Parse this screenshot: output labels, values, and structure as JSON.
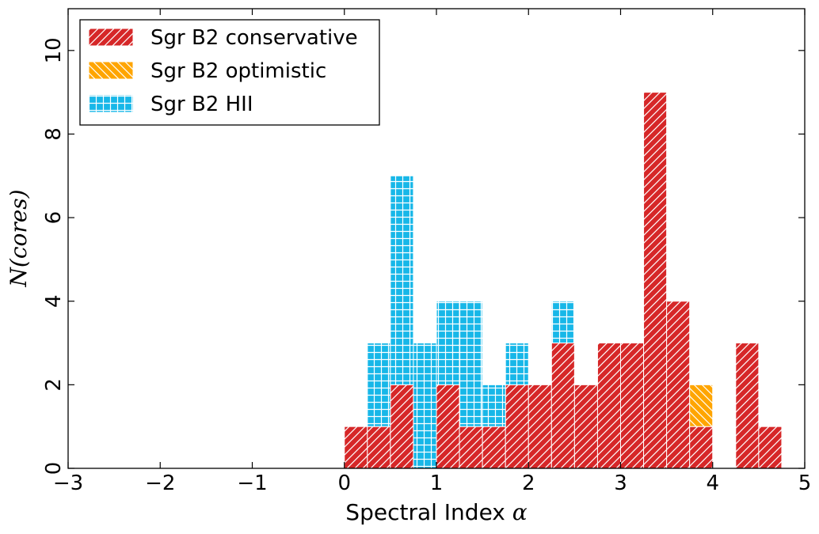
{
  "chart_data": {
    "type": "bar",
    "subtype": "stacked-histogram",
    "xlabel": "Spectral Index",
    "xlabel_symbol": "α",
    "ylabel": "N(cores)",
    "xlim": [
      -3,
      5
    ],
    "ylim": [
      0,
      11
    ],
    "xticks": [
      -3,
      -2,
      -1,
      0,
      1,
      2,
      3,
      4,
      5
    ],
    "xtick_labels": [
      "−3",
      "−2",
      "−1",
      "0",
      "1",
      "2",
      "3",
      "4",
      "5"
    ],
    "yticks": [
      0,
      2,
      4,
      6,
      8,
      10
    ],
    "ytick_labels": [
      "0",
      "2",
      "4",
      "6",
      "8",
      "10"
    ],
    "bin_width": 0.25,
    "bin_starts": [
      0.0,
      0.25,
      0.5,
      0.75,
      1.0,
      1.25,
      1.5,
      1.75,
      2.0,
      2.25,
      2.5,
      2.75,
      3.0,
      3.25,
      3.5,
      3.75,
      4.0,
      4.25,
      4.5
    ],
    "series": [
      {
        "name": "Sgr B2 conservative",
        "color": "#d62728",
        "hatch": "/",
        "values": [
          1,
          1,
          2,
          0,
          2,
          1,
          1,
          2,
          2,
          3,
          2,
          3,
          3,
          9,
          4,
          1,
          0,
          3,
          1
        ]
      },
      {
        "name": "Sgr B2 optimistic",
        "color": "#ffa500",
        "hatch": "\\",
        "values": [
          0,
          0,
          0,
          0,
          0,
          0,
          0,
          0,
          0,
          0,
          0,
          0,
          0,
          0,
          0,
          1,
          0,
          0,
          0
        ]
      },
      {
        "name": "Sgr B2 HII",
        "color": "#17b7e8",
        "hatch": "+",
        "values": [
          0,
          2,
          5,
          3,
          2,
          3,
          1,
          1,
          0,
          1,
          0,
          0,
          0,
          0,
          0,
          0,
          0,
          0,
          0
        ]
      }
    ],
    "legend_position": "top-left",
    "grid": false
  }
}
